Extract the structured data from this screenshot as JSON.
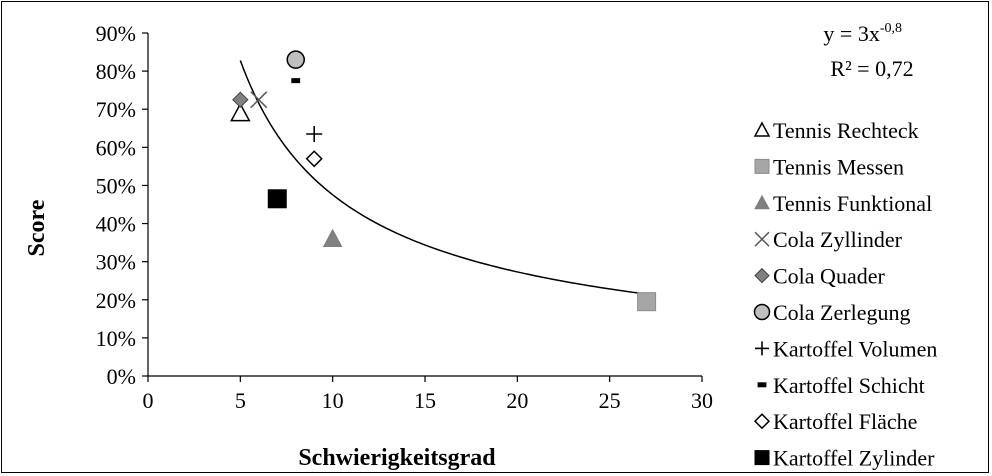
{
  "chart_data": {
    "type": "scatter",
    "title": "",
    "xlabel": "Schwierigkeitsgrad",
    "ylabel": "Score",
    "xlim": [
      0,
      30
    ],
    "ylim": [
      0,
      0.9
    ],
    "x_ticks": [
      0,
      5,
      10,
      15,
      20,
      25,
      30
    ],
    "x_tick_labels": [
      "0",
      "5",
      "10",
      "15",
      "20",
      "25",
      "30"
    ],
    "y_ticks": [
      0,
      0.1,
      0.2,
      0.3,
      0.4,
      0.5,
      0.6,
      0.7,
      0.8,
      0.9
    ],
    "y_tick_labels": [
      "0%",
      "10%",
      "20%",
      "30%",
      "40%",
      "50%",
      "60%",
      "70%",
      "80%",
      "90%"
    ],
    "grid": false,
    "legend_position": "right",
    "series": [
      {
        "name": "Tennis Rechteck",
        "marker": "triangle-open",
        "color": "#000000",
        "x": [
          5
        ],
        "y": [
          0.69
        ]
      },
      {
        "name": "Tennis Messen",
        "marker": "square",
        "color": "#a6a6a6",
        "x": [
          27
        ],
        "y": [
          0.195
        ]
      },
      {
        "name": "Tennis Funktional",
        "marker": "triangle",
        "color": "#808080",
        "x": [
          10
        ],
        "y": [
          0.36
        ]
      },
      {
        "name": "Cola Zyllinder",
        "marker": "x",
        "color": "#595959",
        "x": [
          6
        ],
        "y": [
          0.725
        ]
      },
      {
        "name": "Cola Quader",
        "marker": "diamond",
        "color": "#808080",
        "x": [
          5
        ],
        "y": [
          0.725
        ]
      },
      {
        "name": "Cola Zerlegung",
        "marker": "circle",
        "color": "#bfbfbf",
        "x": [
          8
        ],
        "y": [
          0.83
        ]
      },
      {
        "name": "Kartoffel Volumen",
        "marker": "plus",
        "color": "#000000",
        "x": [
          9
        ],
        "y": [
          0.635
        ]
      },
      {
        "name": "Kartoffel Schicht",
        "marker": "dash",
        "color": "#000000",
        "x": [
          8
        ],
        "y": [
          0.775
        ]
      },
      {
        "name": "Kartoffel Fläche",
        "marker": "diamond-open",
        "color": "#000000",
        "x": [
          9
        ],
        "y": [
          0.57
        ]
      },
      {
        "name": "Kartoffel Zylinder",
        "marker": "square",
        "color": "#000000",
        "x": [
          7
        ],
        "y": [
          0.465
        ]
      }
    ],
    "trendline": {
      "type": "power",
      "a": 3,
      "b": -0.8,
      "x_range": [
        5,
        27
      ],
      "color": "#000000"
    },
    "annotations": {
      "equation_base": "y = 3x",
      "equation_exponent": "-0,8",
      "r_squared": "R² = 0,72"
    }
  }
}
